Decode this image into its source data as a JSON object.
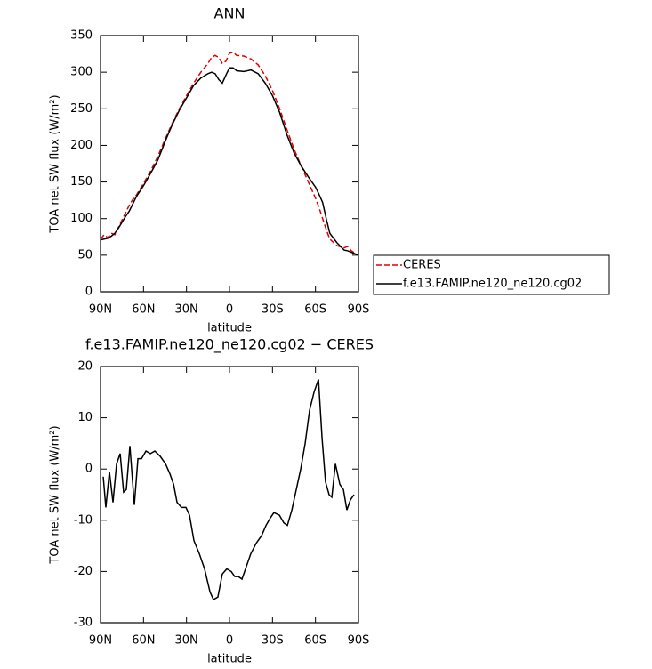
{
  "chart_data": [
    {
      "type": "line",
      "title": "ANN",
      "xlabel": "latitude",
      "ylabel": "TOA net SW flux (W/m²)",
      "x": [
        90,
        87.5,
        85,
        82.5,
        80,
        77.5,
        75,
        72.5,
        70,
        67.5,
        65,
        60,
        55,
        50,
        45,
        40,
        35,
        30,
        25,
        20,
        15,
        12.5,
        10,
        7.5,
        5,
        2.5,
        0,
        -2.5,
        -5,
        -10,
        -15,
        -20,
        -25,
        -30,
        -35,
        -40,
        -45,
        -50,
        -55,
        -60,
        -62.5,
        -65,
        -67.5,
        -70,
        -75,
        -80,
        -82.5,
        -85,
        -90
      ],
      "series": [
        {
          "name": "CERES",
          "color": "#e00000",
          "line_style": "dashed",
          "values": [
            72,
            78,
            74,
            80,
            78,
            88,
            98,
            108,
            118,
            126,
            132,
            148,
            165,
            185,
            208,
            230,
            250,
            268,
            285,
            300,
            312,
            320,
            323,
            320,
            312,
            315,
            326,
            327,
            323,
            322,
            318,
            310,
            295,
            275,
            250,
            222,
            195,
            172,
            150,
            128,
            115,
            100,
            85,
            72,
            63,
            60,
            62,
            56,
            50
          ]
        },
        {
          "name": "f.e13.FAMIP.ne120_ne120.cg02",
          "color": "#000000",
          "line_style": "solid",
          "values": [
            71,
            72,
            73,
            76,
            80,
            87,
            95,
            103,
            110,
            120,
            130,
            145,
            162,
            180,
            205,
            228,
            248,
            265,
            282,
            292,
            298,
            300,
            298,
            290,
            285,
            296,
            306,
            306,
            302,
            301,
            303,
            298,
            285,
            268,
            245,
            215,
            190,
            172,
            157,
            143,
            133,
            122,
            100,
            80,
            67,
            57,
            56,
            54,
            50
          ]
        }
      ],
      "xlim": [
        90,
        -90
      ],
      "xticks": [
        {
          "value": 90,
          "label": "90N"
        },
        {
          "value": 60,
          "label": "60N"
        },
        {
          "value": 30,
          "label": "30N"
        },
        0,
        {
          "value": -30,
          "label": "30S"
        },
        {
          "value": -60,
          "label": "60S"
        },
        {
          "value": -90,
          "label": "90S"
        }
      ],
      "ylim": [
        0,
        350
      ],
      "yticks": [
        0,
        50,
        100,
        150,
        200,
        250,
        300,
        350
      ],
      "legend": "right"
    },
    {
      "type": "line",
      "title": "f.e13.FAMIP.ne120_ne120.cg02 − CERES",
      "xlabel": "latitude",
      "ylabel": "TOA net SW flux (W/m²)",
      "x": [
        88.1,
        86.3,
        83.8,
        81.3,
        78.8,
        76.3,
        73.9,
        72,
        69.5,
        66.4,
        63.9,
        61.4,
        58.3,
        55.2,
        52.1,
        48.4,
        44.6,
        41.5,
        39,
        36.6,
        33.5,
        30.4,
        27.9,
        24.8,
        21.1,
        17.4,
        13.6,
        11.2,
        8.1,
        5,
        1.9,
        -1.2,
        -3.7,
        -6.2,
        -8.7,
        -11.8,
        -14.9,
        -18.6,
        -22.4,
        -25.5,
        -28.6,
        -31,
        -34.8,
        -37.9,
        -40.4,
        -43.5,
        -46.6,
        -49.7,
        -52.8,
        -55.9,
        -59,
        -62.1,
        -64.6,
        -67,
        -69.5,
        -71.4,
        -73.9,
        -77,
        -79.5,
        -81.9,
        -84.4,
        -86.9
      ],
      "series": [
        {
          "color": "#000000",
          "line_style": "solid",
          "values": [
            -1.5,
            -7.5,
            -0.5,
            -6.5,
            1,
            3,
            -4.5,
            -4,
            4.5,
            -7,
            2,
            2,
            3.5,
            3,
            3.5,
            2.5,
            1,
            -1,
            -3,
            -6.5,
            -7.5,
            -7.5,
            -9,
            -14,
            -16.5,
            -19.5,
            -24,
            -25.5,
            -25,
            -20.5,
            -19.5,
            -20,
            -21,
            -21,
            -21.5,
            -19,
            -16.5,
            -14.5,
            -13,
            -11,
            -9.5,
            -8.5,
            -9,
            -10.5,
            -11,
            -8,
            -4,
            0,
            5,
            11.5,
            15,
            17.5,
            6,
            -2.5,
            -5,
            -5.5,
            1,
            -3,
            -4,
            -8,
            -6,
            -5
          ]
        }
      ],
      "xlim": [
        90,
        -90
      ],
      "xticks": [
        {
          "value": 90,
          "label": "90N"
        },
        {
          "value": 60,
          "label": "60N"
        },
        {
          "value": 30,
          "label": "30N"
        },
        0,
        {
          "value": -30,
          "label": "30S"
        },
        {
          "value": -60,
          "label": "60S"
        },
        {
          "value": -90,
          "label": "90S"
        }
      ],
      "ylim": [
        -30,
        20
      ],
      "yticks": [
        -30,
        -20,
        -10,
        0,
        10,
        20
      ]
    }
  ]
}
